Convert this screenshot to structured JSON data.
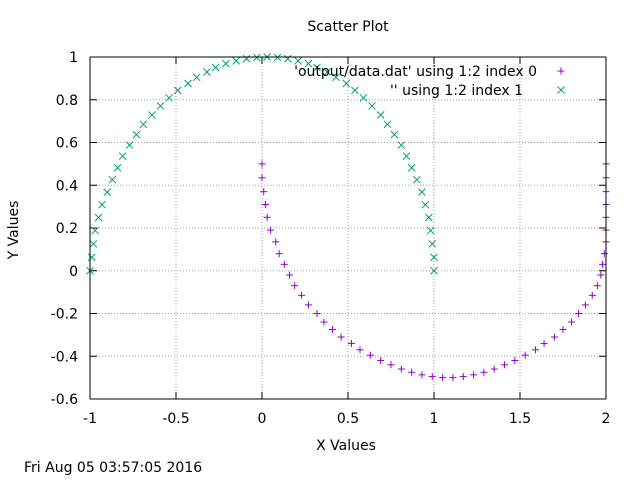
{
  "chart_data": {
    "type": "scatter",
    "title": "Scatter Plot",
    "xlabel": "X Values",
    "ylabel": "Y Values",
    "xlim": [
      -1,
      2
    ],
    "ylim": [
      -0.6,
      1
    ],
    "xticks": [
      "-1",
      "-0.5",
      "0",
      "0.5",
      "1",
      "1.5",
      "2"
    ],
    "yticks": [
      "1",
      "0.8",
      "0.6",
      "0.4",
      "0.2",
      "0",
      "-0.2",
      "-0.4",
      "-0.6"
    ],
    "grid": true,
    "legend_position": "top-right",
    "series": [
      {
        "name": "'output/data.dat' using 1:2 index 0",
        "marker": "plus",
        "color": "#9400d3",
        "points": [
          [
            0.0,
            0.5
          ],
          [
            0.0,
            0.435
          ],
          [
            0.01,
            0.37
          ],
          [
            0.02,
            0.31
          ],
          [
            0.03,
            0.25
          ],
          [
            0.05,
            0.19
          ],
          [
            0.08,
            0.135
          ],
          [
            0.1,
            0.08
          ],
          [
            0.13,
            0.03
          ],
          [
            0.16,
            -0.02
          ],
          [
            0.19,
            -0.07
          ],
          [
            0.23,
            -0.115
          ],
          [
            0.27,
            -0.16
          ],
          [
            0.32,
            -0.2
          ],
          [
            0.36,
            -0.24
          ],
          [
            0.41,
            -0.275
          ],
          [
            0.46,
            -0.31
          ],
          [
            0.52,
            -0.34
          ],
          [
            0.57,
            -0.37
          ],
          [
            0.63,
            -0.395
          ],
          [
            0.69,
            -0.42
          ],
          [
            0.75,
            -0.44
          ],
          [
            0.81,
            -0.46
          ],
          [
            0.87,
            -0.475
          ],
          [
            0.93,
            -0.487
          ],
          [
            0.99,
            -0.495
          ],
          [
            1.05,
            -0.5
          ],
          [
            1.11,
            -0.5
          ],
          [
            1.17,
            -0.495
          ],
          [
            1.23,
            -0.487
          ],
          [
            1.29,
            -0.475
          ],
          [
            1.35,
            -0.46
          ],
          [
            1.41,
            -0.44
          ],
          [
            1.47,
            -0.42
          ],
          [
            1.53,
            -0.395
          ],
          [
            1.59,
            -0.37
          ],
          [
            1.64,
            -0.34
          ],
          [
            1.7,
            -0.31
          ],
          [
            1.75,
            -0.275
          ],
          [
            1.8,
            -0.24
          ],
          [
            1.84,
            -0.2
          ],
          [
            1.88,
            -0.16
          ],
          [
            1.92,
            -0.115
          ],
          [
            1.95,
            -0.07
          ],
          [
            1.97,
            -0.02
          ],
          [
            1.98,
            0.03
          ],
          [
            1.99,
            0.08
          ],
          [
            2.0,
            0.135
          ],
          [
            2.0,
            0.19
          ],
          [
            2.0,
            0.25
          ],
          [
            2.0,
            0.31
          ],
          [
            2.0,
            0.37
          ],
          [
            2.0,
            0.435
          ],
          [
            2.0,
            0.5
          ]
        ]
      },
      {
        "name": "'' using 1:2 index 1",
        "marker": "cross",
        "color": "#009e73",
        "points": [
          [
            -1.0,
            0.0
          ],
          [
            -0.99,
            0.063
          ],
          [
            -0.98,
            0.126
          ],
          [
            -0.97,
            0.188
          ],
          [
            -0.95,
            0.249
          ],
          [
            -0.93,
            0.309
          ],
          [
            -0.9,
            0.368
          ],
          [
            -0.87,
            0.426
          ],
          [
            -0.84,
            0.482
          ],
          [
            -0.81,
            0.536
          ],
          [
            -0.77,
            0.588
          ],
          [
            -0.73,
            0.637
          ],
          [
            -0.69,
            0.685
          ],
          [
            -0.64,
            0.729
          ],
          [
            -0.59,
            0.771
          ],
          [
            -0.54,
            0.809
          ],
          [
            -0.49,
            0.844
          ],
          [
            -0.43,
            0.876
          ],
          [
            -0.38,
            0.905
          ],
          [
            -0.32,
            0.93
          ],
          [
            -0.27,
            0.951
          ],
          [
            -0.21,
            0.969
          ],
          [
            -0.15,
            0.982
          ],
          [
            -0.09,
            0.992
          ],
          [
            -0.03,
            0.998
          ],
          [
            0.03,
            1.0
          ],
          [
            0.09,
            0.998
          ],
          [
            0.15,
            0.992
          ],
          [
            0.21,
            0.982
          ],
          [
            0.27,
            0.969
          ],
          [
            0.32,
            0.951
          ],
          [
            0.38,
            0.93
          ],
          [
            0.43,
            0.905
          ],
          [
            0.49,
            0.876
          ],
          [
            0.54,
            0.844
          ],
          [
            0.59,
            0.809
          ],
          [
            0.64,
            0.771
          ],
          [
            0.69,
            0.729
          ],
          [
            0.73,
            0.685
          ],
          [
            0.77,
            0.637
          ],
          [
            0.81,
            0.588
          ],
          [
            0.84,
            0.536
          ],
          [
            0.87,
            0.482
          ],
          [
            0.9,
            0.426
          ],
          [
            0.93,
            0.368
          ],
          [
            0.95,
            0.309
          ],
          [
            0.97,
            0.249
          ],
          [
            0.98,
            0.188
          ],
          [
            0.99,
            0.126
          ],
          [
            1.0,
            0.063
          ],
          [
            1.0,
            0.0
          ]
        ]
      }
    ]
  },
  "footer": {
    "timestamp": "Fri Aug 05 03:57:05 2016"
  }
}
